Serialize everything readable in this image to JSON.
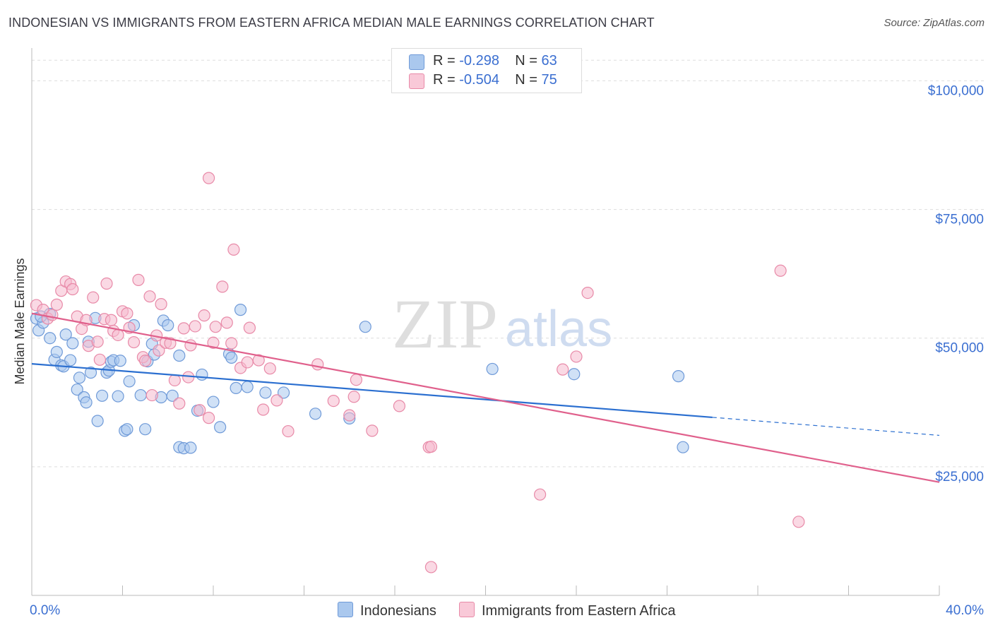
{
  "header": {
    "title": "INDONESIAN VS IMMIGRANTS FROM EASTERN AFRICA MEDIAN MALE EARNINGS CORRELATION CHART",
    "source": "Source: ZipAtlas.com"
  },
  "watermark": {
    "zip": "ZIP",
    "atlas": "atlas"
  },
  "legend": {
    "indonesians": {
      "r_label": "R =",
      "r_value": "-0.298",
      "n_label": "N =",
      "n_value": "63"
    },
    "eastern_africa": {
      "r_label": "R =",
      "r_value": "-0.504",
      "n_label": "N =",
      "n_value": "75"
    }
  },
  "bottom_legend": {
    "indonesians": "Indonesians",
    "eastern_africa": "Immigrants from Eastern Africa"
  },
  "colors": {
    "blue_fill": "#aac8ee",
    "blue_stroke": "#6f9ad8",
    "blue_line": "#2b6fd0",
    "pink_fill": "#f6b9cd",
    "pink_stroke": "#e88aa8",
    "pink_line": "#e0608c",
    "tick_label": "#3b6fd1"
  },
  "chart_data": {
    "type": "scatter",
    "title": "INDONESIAN VS IMMIGRANTS FROM EASTERN AFRICA MEDIAN MALE EARNINGS CORRELATION CHART",
    "xlabel": "",
    "ylabel": "Median Male Earnings",
    "xlim": [
      0,
      40
    ],
    "ylim": [
      0,
      105000
    ],
    "x_tick_labels": [
      "0.0%",
      "40.0%"
    ],
    "y_ticks": [
      25000,
      50000,
      75000,
      100000
    ],
    "y_tick_labels": [
      "$25,000",
      "$50,000",
      "$75,000",
      "$100,000"
    ],
    "grid": true,
    "legend_position": "top-center",
    "series": [
      {
        "name": "Indonesians",
        "color": "#6f9ad8",
        "trend": {
          "x_start": 0,
          "y_start": 45000,
          "x_solid_end": 30,
          "y_solid_end": 34600,
          "x_dash_end": 40,
          "y_dash_end": 31100
        },
        "points": [
          [
            0.2,
            53800
          ],
          [
            0.3,
            51500
          ],
          [
            0.5,
            53000
          ],
          [
            0.8,
            54700
          ],
          [
            0.8,
            50000
          ],
          [
            1.0,
            45800
          ],
          [
            1.1,
            47300
          ],
          [
            1.3,
            44700
          ],
          [
            1.4,
            44500
          ],
          [
            1.5,
            50700
          ],
          [
            1.7,
            45700
          ],
          [
            1.8,
            49000
          ],
          [
            2.0,
            40000
          ],
          [
            2.1,
            42300
          ],
          [
            2.3,
            38500
          ],
          [
            2.4,
            37500
          ],
          [
            2.5,
            49300
          ],
          [
            2.6,
            43300
          ],
          [
            2.8,
            53900
          ],
          [
            2.9,
            33900
          ],
          [
            3.1,
            38800
          ],
          [
            3.3,
            43300
          ],
          [
            3.4,
            43700
          ],
          [
            3.5,
            45400
          ],
          [
            3.6,
            45700
          ],
          [
            3.8,
            38700
          ],
          [
            3.9,
            45600
          ],
          [
            4.1,
            32000
          ],
          [
            4.2,
            32300
          ],
          [
            4.3,
            41600
          ],
          [
            4.5,
            52500
          ],
          [
            4.8,
            38900
          ],
          [
            5.0,
            32300
          ],
          [
            5.1,
            45500
          ],
          [
            5.3,
            48900
          ],
          [
            5.4,
            46800
          ],
          [
            5.7,
            38500
          ],
          [
            5.8,
            53400
          ],
          [
            6.0,
            52500
          ],
          [
            6.2,
            38800
          ],
          [
            6.5,
            28800
          ],
          [
            6.5,
            46600
          ],
          [
            6.7,
            28600
          ],
          [
            7.0,
            28700
          ],
          [
            7.3,
            35900
          ],
          [
            7.5,
            42900
          ],
          [
            8.0,
            37600
          ],
          [
            8.3,
            32700
          ],
          [
            8.7,
            46900
          ],
          [
            8.8,
            46200
          ],
          [
            9.2,
            55500
          ],
          [
            9.0,
            40300
          ],
          [
            9.5,
            40500
          ],
          [
            10.3,
            39400
          ],
          [
            11.1,
            39400
          ],
          [
            12.5,
            35300
          ],
          [
            14.0,
            34400
          ],
          [
            14.7,
            52200
          ],
          [
            20.3,
            44000
          ],
          [
            23.9,
            43000
          ],
          [
            28.5,
            42600
          ],
          [
            28.7,
            28800
          ],
          [
            0.4,
            54200
          ]
        ]
      },
      {
        "name": "Immigrants from Eastern Africa",
        "color": "#e88aa8",
        "trend": {
          "x_start": 0,
          "y_start": 54800,
          "x_end": 40,
          "y_end": 22000
        },
        "points": [
          [
            0.2,
            56400
          ],
          [
            0.5,
            55500
          ],
          [
            0.7,
            53800
          ],
          [
            0.9,
            54500
          ],
          [
            1.1,
            56500
          ],
          [
            1.3,
            59200
          ],
          [
            1.5,
            61000
          ],
          [
            1.7,
            60500
          ],
          [
            1.8,
            59500
          ],
          [
            2.0,
            54200
          ],
          [
            2.2,
            51800
          ],
          [
            2.4,
            53500
          ],
          [
            2.5,
            48500
          ],
          [
            2.7,
            57900
          ],
          [
            2.9,
            49300
          ],
          [
            3.0,
            45800
          ],
          [
            3.2,
            53700
          ],
          [
            3.3,
            60600
          ],
          [
            3.5,
            53500
          ],
          [
            3.6,
            51400
          ],
          [
            3.8,
            50600
          ],
          [
            4.0,
            55200
          ],
          [
            4.2,
            54800
          ],
          [
            4.3,
            52000
          ],
          [
            4.5,
            49200
          ],
          [
            4.7,
            61300
          ],
          [
            4.9,
            46300
          ],
          [
            5.0,
            45600
          ],
          [
            5.2,
            58100
          ],
          [
            5.3,
            38900
          ],
          [
            5.5,
            50500
          ],
          [
            5.6,
            47600
          ],
          [
            5.7,
            56600
          ],
          [
            5.9,
            49100
          ],
          [
            6.1,
            49000
          ],
          [
            6.3,
            41800
          ],
          [
            6.5,
            37300
          ],
          [
            6.7,
            51900
          ],
          [
            6.9,
            42400
          ],
          [
            7.0,
            48600
          ],
          [
            7.2,
            52300
          ],
          [
            7.4,
            36000
          ],
          [
            7.6,
            54400
          ],
          [
            7.8,
            34500
          ],
          [
            8.0,
            49100
          ],
          [
            7.8,
            81100
          ],
          [
            8.1,
            52200
          ],
          [
            8.4,
            60000
          ],
          [
            8.6,
            53000
          ],
          [
            8.8,
            49000
          ],
          [
            8.9,
            67200
          ],
          [
            9.2,
            44200
          ],
          [
            9.5,
            45300
          ],
          [
            9.6,
            52000
          ],
          [
            10.0,
            45700
          ],
          [
            10.2,
            36100
          ],
          [
            10.5,
            44100
          ],
          [
            10.8,
            37900
          ],
          [
            11.3,
            31900
          ],
          [
            12.6,
            44900
          ],
          [
            13.3,
            37800
          ],
          [
            14.0,
            35000
          ],
          [
            14.3,
            41900
          ],
          [
            14.2,
            38600
          ],
          [
            15.0,
            32000
          ],
          [
            16.2,
            36800
          ],
          [
            17.5,
            28800
          ],
          [
            17.6,
            28900
          ],
          [
            17.6,
            5500
          ],
          [
            22.4,
            19600
          ],
          [
            23.4,
            43900
          ],
          [
            24.0,
            46400
          ],
          [
            24.5,
            58800
          ],
          [
            33.0,
            63100
          ],
          [
            33.8,
            14300
          ]
        ]
      }
    ]
  }
}
